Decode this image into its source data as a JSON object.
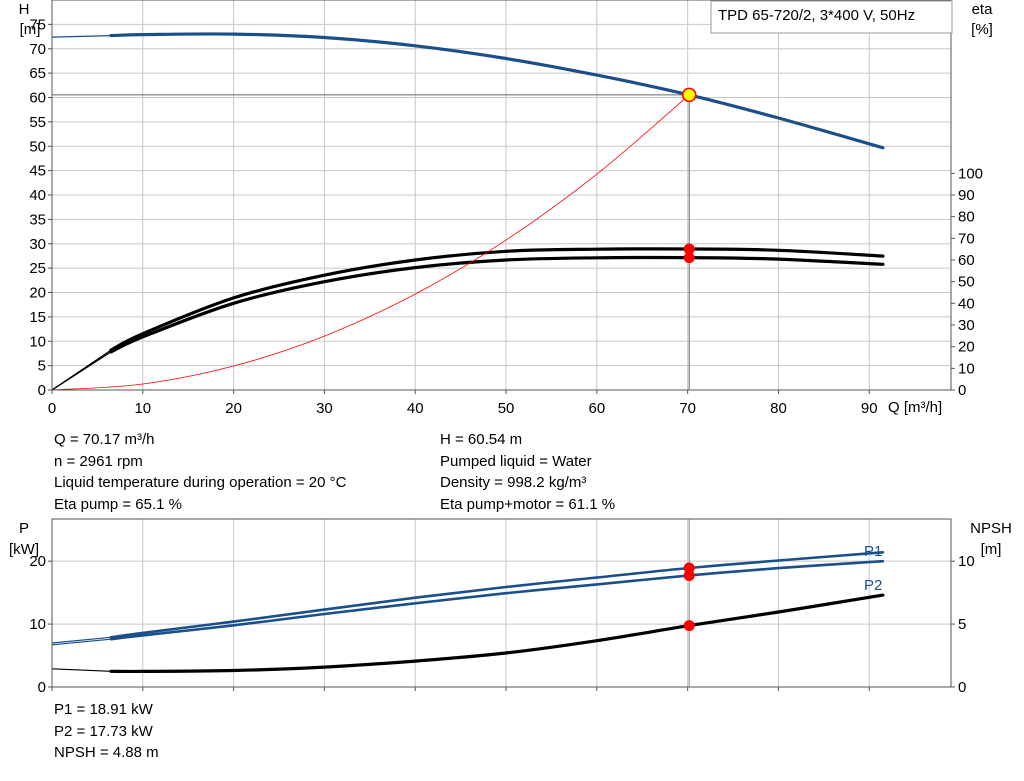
{
  "colors": {
    "head": "#1a4f8b",
    "power": "#1a4f8b",
    "efficiency": "#000000",
    "npsh": "#000000",
    "system_curve": "#ff0000",
    "duty_marker": "#ff0000",
    "duty_point_fill": "#ffff00",
    "grid": "#c8c8c8"
  },
  "readout_top": {
    "q": "Q = 70.17 m³/h",
    "n": "n = 2961 rpm",
    "temp": "Liquid temperature during operation = 20 °C",
    "eta_pump": "Eta pump = 65.1 %",
    "h": "H = 60.54 m",
    "liquid": "Pumped liquid = Water",
    "density": "Density = 998.2 kg/m³",
    "eta_total": "Eta pump+motor = 61.1 %"
  },
  "readout_bottom": {
    "p1": "P1 = 18.91 kW",
    "p2": "P2 = 17.73 kW",
    "npsh": "NPSH = 4.88 m"
  },
  "chart_data": [
    {
      "type": "line",
      "title": "TPD 65-720/2, 3*400 V, 50Hz",
      "xlabel": "Q [m³/h]",
      "ylabel": [
        "H",
        "[m]"
      ],
      "y2label": [
        "eta",
        "[%]"
      ],
      "xlim": [
        0,
        99
      ],
      "ylim": [
        0,
        80
      ],
      "y2lim": [
        0,
        180
      ],
      "x_ticks": [
        0,
        10,
        20,
        30,
        40,
        50,
        60,
        70,
        80,
        90
      ],
      "y_ticks": [
        0,
        5,
        10,
        15,
        20,
        25,
        30,
        35,
        40,
        45,
        50,
        55,
        60,
        65,
        70,
        75
      ],
      "y2_ticks": [
        0,
        10,
        20,
        30,
        40,
        50,
        60,
        70,
        80,
        90,
        100
      ],
      "grid": true,
      "duty_point": {
        "q": 70.17,
        "h": 60.54
      },
      "series": [
        {
          "role": "head",
          "axis": "left",
          "x": [
            0,
            6.5,
            10,
            20,
            30,
            40,
            50,
            60,
            70.17,
            80,
            91.5
          ],
          "y": [
            72.4,
            72.7,
            72.9,
            73.0,
            72.3,
            70.6,
            68.0,
            64.6,
            60.54,
            55.8,
            49.7
          ],
          "extend_start": 6.5
        },
        {
          "role": "efficiency",
          "axis": "right",
          "x": [
            0,
            6.5,
            10,
            20,
            30,
            40,
            50,
            60,
            70.17,
            80,
            91.5
          ],
          "y": [
            0,
            18.4,
            26.0,
            42.5,
            53.0,
            60.0,
            64.0,
            65.0,
            65.1,
            64.5,
            61.8
          ],
          "extend_start": 6.5
        },
        {
          "role": "efficiency",
          "axis": "right",
          "x": [
            0,
            6.5,
            10,
            20,
            30,
            40,
            50,
            60,
            70.17,
            80,
            91.5
          ],
          "y": [
            0,
            17.6,
            24.5,
            40.0,
            50.0,
            56.5,
            60.0,
            61.0,
            61.1,
            60.4,
            58.0
          ],
          "extend_start": 6.5
        },
        {
          "role": "system_curve",
          "axis": "left",
          "x": [
            0,
            10,
            20,
            30,
            40,
            50,
            60,
            70.17
          ],
          "y": [
            0,
            1.23,
            4.92,
            11.06,
            19.67,
            30.74,
            44.26,
            60.54
          ]
        }
      ],
      "markers": [
        {
          "axis": "right",
          "x": 70.17,
          "y": 65.1
        },
        {
          "axis": "right",
          "x": 70.17,
          "y": 61.1
        }
      ]
    },
    {
      "type": "line",
      "xlim": [
        0,
        99
      ],
      "ylim": [
        0,
        26.7
      ],
      "y2lim": [
        0,
        13.35
      ],
      "ylabel": [
        "P",
        "[kW]"
      ],
      "y2label": [
        "NPSH",
        "[m]"
      ],
      "y_ticks": [
        0,
        10,
        20
      ],
      "y2_ticks": [
        0,
        5,
        10
      ],
      "grid": true,
      "series": [
        {
          "name": "P1",
          "role": "power",
          "axis": "left",
          "x": [
            0,
            6.5,
            10,
            20,
            30,
            40,
            50,
            60,
            70.17,
            80,
            91.5
          ],
          "y": [
            7.0,
            7.9,
            8.6,
            10.4,
            12.3,
            14.2,
            15.9,
            17.4,
            18.91,
            20.1,
            21.4
          ],
          "extend_start": 6.5
        },
        {
          "name": "P2",
          "role": "power",
          "axis": "left",
          "x": [
            0,
            6.5,
            10,
            20,
            30,
            40,
            50,
            60,
            70.17,
            80,
            91.5
          ],
          "y": [
            6.7,
            7.6,
            8.2,
            9.8,
            11.6,
            13.3,
            14.9,
            16.3,
            17.73,
            18.9,
            20.0
          ],
          "extend_start": 6.5
        },
        {
          "role": "npsh",
          "axis": "right",
          "x": [
            0,
            6.5,
            10,
            20,
            30,
            40,
            50,
            60,
            70.17,
            80,
            91.5
          ],
          "y": [
            1.45,
            1.25,
            1.24,
            1.31,
            1.58,
            2.06,
            2.7,
            3.68,
            4.88,
            5.96,
            7.3
          ],
          "extend_start": 6.5
        }
      ],
      "markers": [
        {
          "axis": "left",
          "x": 70.17,
          "y": 18.91
        },
        {
          "axis": "left",
          "x": 70.17,
          "y": 17.73
        },
        {
          "axis": "right",
          "x": 70.17,
          "y": 4.88
        }
      ]
    }
  ]
}
